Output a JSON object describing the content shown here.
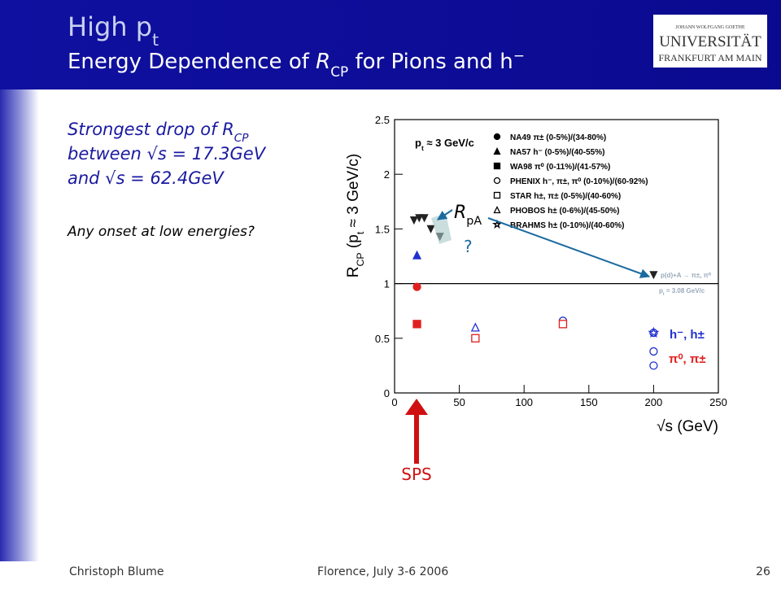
{
  "header": {
    "title": [
      {
        "text": "High p"
      },
      {
        "text": "t",
        "sub": true
      }
    ],
    "subtitle": [
      {
        "text": "Energy Dependence of "
      },
      {
        "text": "R",
        "italic": true
      },
      {
        "text": "CP",
        "sub": true
      },
      {
        "text": " for Pions and h"
      },
      {
        "text": "−",
        "sup": true
      }
    ],
    "logo": [
      "JOHANN WOLFGANG GOETHE",
      "UNIVERSITÄT",
      "FRANKFURT AM MAIN"
    ]
  },
  "body": {
    "lines": [
      [
        {
          "text": "Strongest drop of R"
        },
        {
          "text": "CP",
          "sub": true
        }
      ],
      [
        {
          "text": "between √s = 17.3GeV"
        }
      ],
      [
        {
          "text": "and √s = 62.4GeV"
        }
      ]
    ],
    "question": "Any onset at low energies?",
    "rpa_label": [
      {
        "text": "R",
        "italic": true
      },
      {
        "text": "pA",
        "sub": true
      }
    ],
    "unknown_mark": "?",
    "sps_label": "SPS"
  },
  "footer": {
    "author": "Christoph Blume",
    "event": "Florence, July 3-6 2006",
    "page": "26"
  },
  "chart_data": {
    "type": "scatter",
    "xlim": [
      0,
      250
    ],
    "ylim": [
      0,
      2.5
    ],
    "xticks": [
      0,
      50,
      100,
      150,
      200,
      250
    ],
    "yticks": [
      0,
      0.5,
      1,
      1.5,
      2,
      2.5
    ],
    "x_label": "√s (GeV)",
    "y_label": [
      {
        "text": "R"
      },
      {
        "text": "CP",
        "sub": true
      },
      {
        "text": " (p"
      },
      {
        "text": "t",
        "sub": true
      },
      {
        "text": " ≈ 3 GeV/c)"
      }
    ],
    "reference_line": 1,
    "annotations": {
      "pt_cut": [
        {
          "text": "p"
        },
        {
          "text": "t",
          "sub": true
        },
        {
          "text": " ≈ 3 GeV/c"
        }
      ],
      "pa_pt": [
        {
          "text": "p"
        },
        {
          "text": "t",
          "sub": true
        },
        {
          "text": " = 3.08 GeV/c"
        }
      ],
      "hadrons": "h⁻, h±",
      "pions": "π⁰, π±"
    },
    "series": [
      {
        "name": "NA49 π± (0-5%)/(34-80%)",
        "marker": "circle",
        "filled": true,
        "color": "#e02020",
        "x": [
          17.3
        ],
        "values": [
          0.97
        ]
      },
      {
        "name": "NA57 h⁻ (0-5%)/(40-55%)",
        "marker": "triangle",
        "filled": true,
        "color": "#2030d0",
        "x": [
          17.3
        ],
        "values": [
          1.26
        ]
      },
      {
        "name": "WA98 π⁰ (0-11%)/(41-57%)",
        "marker": "square",
        "filled": true,
        "color": "#e02020",
        "x": [
          17.3
        ],
        "values": [
          0.63
        ]
      },
      {
        "name": "PHENIX h⁻, π±, π⁰ (0-10%)/(60-92%)",
        "marker": "circle",
        "filled": false,
        "color": "#2030d0",
        "x": [
          130,
          200,
          200,
          200
        ],
        "values": [
          0.66,
          0.55,
          0.38,
          0.25
        ]
      },
      {
        "name": "STAR h±, π± (0-5%)/(40-60%)",
        "marker": "square",
        "filled": false,
        "color": "#e02020",
        "x": [
          62.4,
          130
        ],
        "values": [
          0.5,
          0.63
        ]
      },
      {
        "name": "PHOBOS h± (0-6%)/(45-50%)",
        "marker": "triangle",
        "filled": false,
        "color": "#2030d0",
        "x": [
          62.4
        ],
        "values": [
          0.6
        ]
      },
      {
        "name": "BRAHMS h± (0-10%)/(40-60%)",
        "marker": "star",
        "filled": false,
        "color": "#2030d0",
        "x": [
          200
        ],
        "values": [
          0.55
        ]
      }
    ],
    "pa_series": {
      "name": "p(d)+A → π±, π⁰",
      "marker": "down-triangle",
      "filled": true,
      "color": "#222222",
      "x": [
        15,
        19,
        23,
        28,
        35,
        200
      ],
      "values": [
        1.58,
        1.6,
        1.6,
        1.5,
        1.43,
        1.08
      ]
    }
  }
}
